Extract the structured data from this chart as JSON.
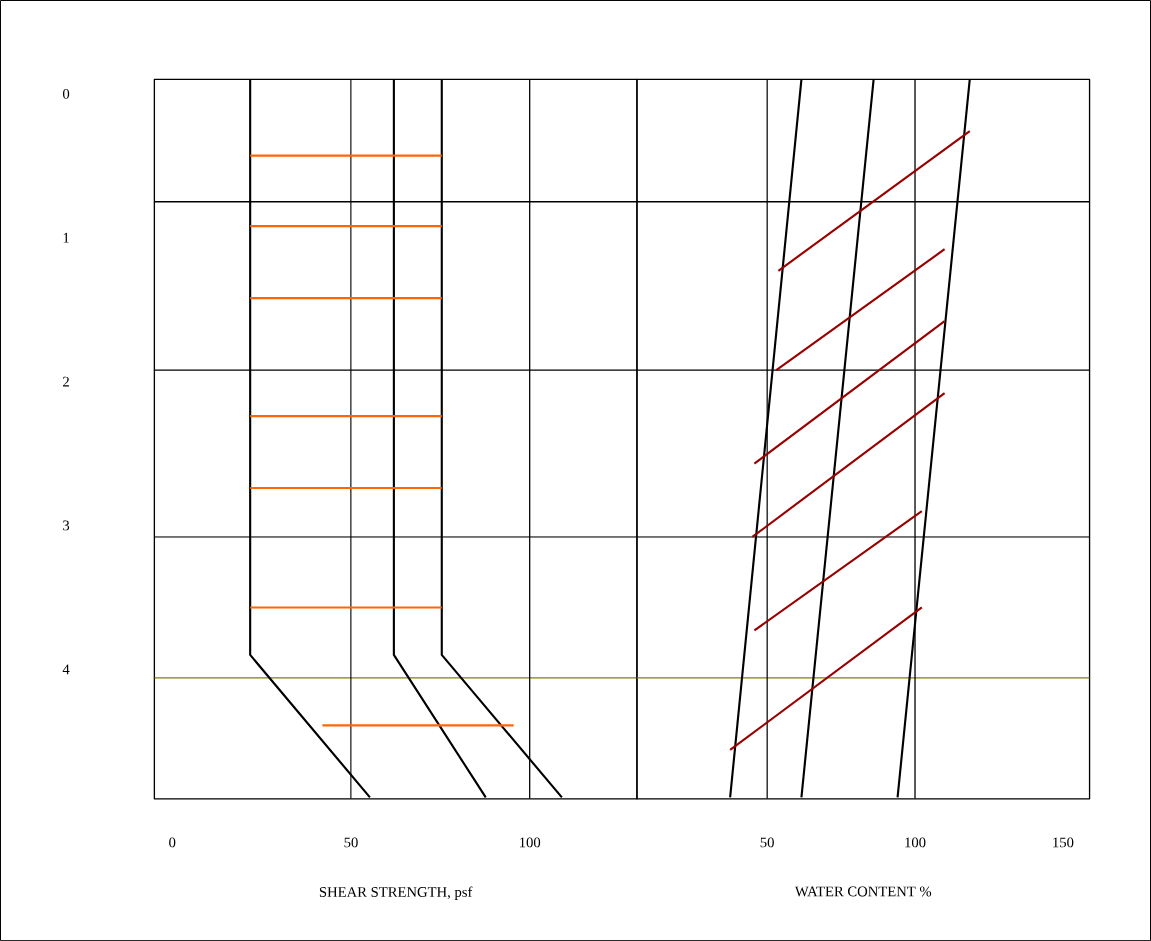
{
  "chart_data": [
    {
      "type": "line",
      "xlabel": "SHEAR STRENGTH, psf",
      "xlim": [
        -5,
        130
      ],
      "xticks": [
        0,
        50,
        100
      ],
      "ylim": [
        4.9,
        -0.1
      ],
      "yticks": [
        0,
        1,
        2,
        3,
        4
      ],
      "ref_lines": [
        {
          "axis": "y",
          "value": 0.75,
          "color": "#000000"
        },
        {
          "axis": "y",
          "value": 1.92,
          "color": "#000000"
        },
        {
          "axis": "y",
          "value": 3.08,
          "color": "#000000"
        },
        {
          "axis": "y",
          "value": 4.06,
          "color": "#808000"
        },
        {
          "axis": "x",
          "value": 50,
          "color": "#000000"
        },
        {
          "axis": "x",
          "value": 100,
          "color": "#000000"
        }
      ],
      "series": [
        {
          "color": "#000000",
          "x": [
            21.8,
            21.8,
            55.3
          ],
          "values": [
            -0.1,
            3.9,
            4.89
          ]
        },
        {
          "color": "#000000",
          "x": [
            62,
            62,
            87.7
          ],
          "values": [
            -0.1,
            3.9,
            4.89
          ]
        },
        {
          "color": "#000000",
          "x": [
            75.4,
            75.4,
            109
          ],
          "values": [
            -0.1,
            3.9,
            4.89
          ]
        },
        {
          "color": "#ff6600",
          "x": [
            21.8,
            75.4
          ],
          "values": [
            0.43,
            0.43
          ]
        },
        {
          "color": "#ff6600",
          "x": [
            21.8,
            75.4
          ],
          "values": [
            0.92,
            0.92
          ]
        },
        {
          "color": "#ff6600",
          "x": [
            21.8,
            75.4
          ],
          "values": [
            1.42,
            1.42
          ]
        },
        {
          "color": "#ff6600",
          "x": [
            21.8,
            75.4
          ],
          "values": [
            2.24,
            2.24
          ]
        },
        {
          "color": "#ff6600",
          "x": [
            21.8,
            75.4
          ],
          "values": [
            2.74,
            2.74
          ]
        },
        {
          "color": "#ff6600",
          "x": [
            21.8,
            75.4
          ],
          "values": [
            3.57,
            3.57
          ]
        },
        {
          "color": "#ff6600",
          "x": [
            42,
            95.5
          ],
          "values": [
            4.39,
            4.39
          ]
        }
      ]
    },
    {
      "type": "line",
      "xlabel": "WATER CONTENT  %",
      "xlim": [
        6,
        159
      ],
      "xticks": [
        50,
        100,
        150
      ],
      "ylim": [
        4.9,
        -0.1
      ],
      "yticks": [
        0,
        1,
        2,
        3,
        4
      ],
      "tick_labels": "x",
      "ref_lines": [
        {
          "axis": "y",
          "value": 0.75,
          "color": "#000000"
        },
        {
          "axis": "y",
          "value": 1.92,
          "color": "#000000"
        },
        {
          "axis": "y",
          "value": 3.08,
          "color": "#000000"
        },
        {
          "axis": "y",
          "value": 4.06,
          "color": "#808000"
        },
        {
          "axis": "x",
          "value": 50,
          "color": "#000000"
        },
        {
          "axis": "x",
          "value": 100,
          "color": "#000000"
        }
      ],
      "series": [
        {
          "color": "#000000",
          "x": [
            61.6,
            37.5
          ],
          "values": [
            -0.1,
            4.89
          ]
        },
        {
          "color": "#000000",
          "x": [
            86,
            61.6
          ],
          "values": [
            -0.1,
            4.89
          ]
        },
        {
          "color": "#000000",
          "x": [
            118.5,
            94.1
          ],
          "values": [
            -0.1,
            4.89
          ]
        },
        {
          "color": "#990000",
          "x": [
            53.8,
            118.5
          ],
          "values": [
            1.23,
            0.26
          ]
        },
        {
          "color": "#990000",
          "x": [
            53.1,
            110
          ],
          "values": [
            1.92,
            1.08
          ]
        },
        {
          "color": "#990000",
          "x": [
            45.7,
            110
          ],
          "values": [
            2.57,
            1.58
          ]
        },
        {
          "color": "#990000",
          "x": [
            45,
            110
          ],
          "values": [
            3.08,
            2.08
          ]
        },
        {
          "color": "#990000",
          "x": [
            45.7,
            102.3
          ],
          "values": [
            3.73,
            2.9
          ]
        },
        {
          "color": "#990000",
          "x": [
            37.5,
            102.3
          ],
          "values": [
            4.56,
            3.57
          ]
        }
      ]
    }
  ]
}
